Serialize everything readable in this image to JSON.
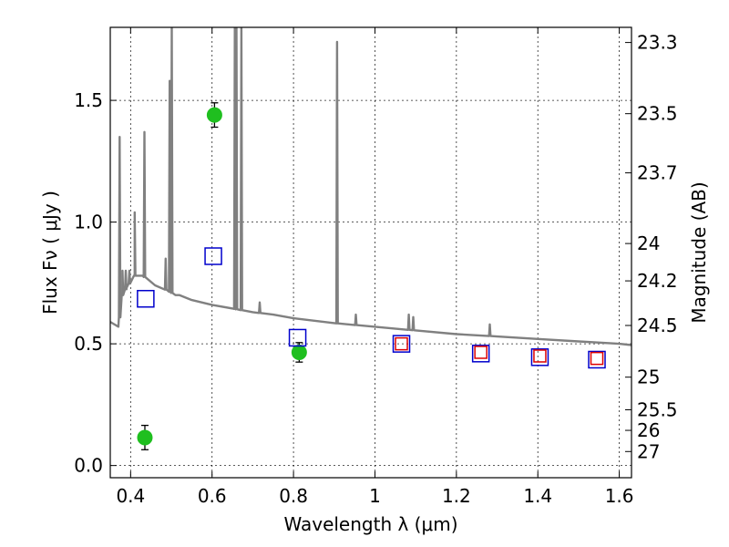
{
  "chart_data": {
    "type": "scatter",
    "title": "",
    "xlabel": "Wavelength  λ (μm)",
    "ylabel": "Flux  Fν  ( μJy )",
    "ylabel_right": "Magnitude (AB)",
    "xlim": [
      0.35,
      1.63
    ],
    "ylim": [
      -0.05,
      1.8
    ],
    "grid": true,
    "x_ticks": [
      {
        "value": 0.4,
        "label": "0.4"
      },
      {
        "value": 0.6,
        "label": "0.6"
      },
      {
        "value": 0.8,
        "label": "0.8"
      },
      {
        "value": 1.0,
        "label": "1"
      },
      {
        "value": 1.2,
        "label": "1.2"
      },
      {
        "value": 1.4,
        "label": "1.4"
      },
      {
        "value": 1.6,
        "label": "1.6"
      }
    ],
    "y_ticks": [
      {
        "value": 0.0,
        "label": "0.0"
      },
      {
        "value": 0.5,
        "label": "0.5"
      },
      {
        "value": 1.0,
        "label": "1.0"
      },
      {
        "value": 1.5,
        "label": "1.5"
      }
    ],
    "right_ticks": [
      {
        "mag": 23.3,
        "label": "23.3"
      },
      {
        "mag": 23.5,
        "label": "23.5"
      },
      {
        "mag": 23.7,
        "label": "23.7"
      },
      {
        "mag": 24.0,
        "label": "24"
      },
      {
        "mag": 24.2,
        "label": "24.2"
      },
      {
        "mag": 24.5,
        "label": "24.5"
      },
      {
        "mag": 25.0,
        "label": "25"
      },
      {
        "mag": 25.5,
        "label": "25.5"
      },
      {
        "mag": 26.0,
        "label": "26"
      },
      {
        "mag": 27.0,
        "label": "27"
      }
    ],
    "series": [
      {
        "marker": "line",
        "color": "#808080",
        "spectrum": {
          "continuum": [
            [
              0.35,
              0.59
            ],
            [
              0.37,
              0.57
            ],
            [
              0.38,
              0.7
            ],
            [
              0.39,
              0.73
            ],
            [
              0.41,
              0.78
            ],
            [
              0.43,
              0.78
            ],
            [
              0.46,
              0.74
            ],
            [
              0.49,
              0.72
            ],
            [
              0.51,
              0.7
            ],
            [
              0.52,
              0.7
            ],
            [
              0.55,
              0.68
            ],
            [
              0.6,
              0.66
            ],
            [
              0.65,
              0.645
            ],
            [
              0.7,
              0.63
            ],
            [
              0.75,
              0.62
            ],
            [
              0.8,
              0.605
            ],
            [
              0.9,
              0.585
            ],
            [
              1.0,
              0.57
            ],
            [
              1.1,
              0.555
            ],
            [
              1.2,
              0.54
            ],
            [
              1.3,
              0.53
            ],
            [
              1.4,
              0.52
            ],
            [
              1.5,
              0.51
            ],
            [
              1.6,
              0.5
            ],
            [
              1.63,
              0.495
            ]
          ],
          "lines": [
            {
              "x": 0.373,
              "peak": 1.35
            },
            {
              "x": 0.38,
              "peak": 0.8
            },
            {
              "x": 0.388,
              "peak": 0.8
            },
            {
              "x": 0.397,
              "peak": 0.8
            },
            {
              "x": 0.41,
              "peak": 1.04
            },
            {
              "x": 0.434,
              "peak": 1.37
            },
            {
              "x": 0.486,
              "peak": 0.85
            },
            {
              "x": 0.496,
              "peak": 1.58
            },
            {
              "x": 0.501,
              "peak": 1.8
            },
            {
              "x": 0.656,
              "peak": 1.8
            },
            {
              "x": 0.66,
              "peak": 1.8
            },
            {
              "x": 0.672,
              "peak": 1.8
            },
            {
              "x": 0.717,
              "peak": 0.67
            },
            {
              "x": 0.907,
              "peak": 1.74
            },
            {
              "x": 0.953,
              "peak": 0.62
            },
            {
              "x": 1.083,
              "peak": 0.62
            },
            {
              "x": 1.094,
              "peak": 0.61
            },
            {
              "x": 1.282,
              "peak": 0.58
            }
          ]
        }
      },
      {
        "marker": "filled-circle",
        "color": "#1fbf1f",
        "points": [
          {
            "x": 0.435,
            "y": 0.115,
            "err": 0.05
          },
          {
            "x": 0.606,
            "y": 1.44,
            "err": 0.05
          },
          {
            "x": 0.814,
            "y": 0.465,
            "err": 0.04
          }
        ]
      },
      {
        "marker": "open-square",
        "color": "#0000cc",
        "points": [
          {
            "x": 0.437,
            "y": 0.685
          },
          {
            "x": 0.603,
            "y": 0.86
          },
          {
            "x": 0.81,
            "y": 0.525
          },
          {
            "x": 1.065,
            "y": 0.5
          },
          {
            "x": 1.26,
            "y": 0.46
          },
          {
            "x": 1.405,
            "y": 0.445
          },
          {
            "x": 1.545,
            "y": 0.435
          }
        ]
      },
      {
        "marker": "open-square",
        "color": "#dd0000",
        "points": [
          {
            "x": 1.065,
            "y": 0.5
          },
          {
            "x": 1.26,
            "y": 0.465
          },
          {
            "x": 1.405,
            "y": 0.45
          },
          {
            "x": 1.545,
            "y": 0.44
          }
        ]
      }
    ]
  }
}
